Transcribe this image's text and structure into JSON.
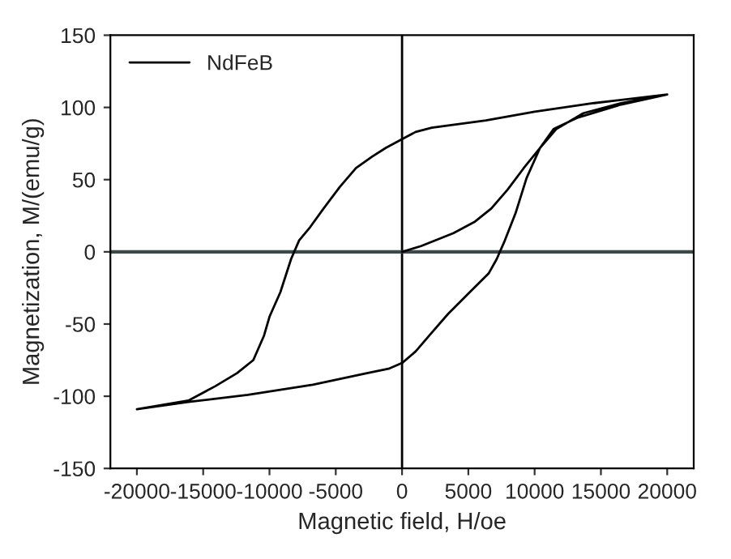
{
  "chart_data": {
    "type": "line",
    "xlabel": "Magnetic field, H/oe",
    "ylabel": "Magnetization, M/(emu/g)",
    "xlim": [
      -22000,
      22000
    ],
    "xticks": [
      -20000,
      -15000,
      -10000,
      -5000,
      0,
      5000,
      10000,
      15000,
      20000
    ],
    "ylim": [
      -150,
      150
    ],
    "yticks": [
      -150,
      -100,
      -50,
      0,
      50,
      100,
      150
    ],
    "series": [
      {
        "name": "NdFeB",
        "color": "#000000",
        "x": [
          0,
          1430,
          3880,
          5510,
          6730,
          7960,
          9180,
          10410,
          11430,
          13270,
          16530,
          20000,
          14490,
          10000,
          6330,
          2240,
          1020,
          0,
          -1220,
          -2240,
          -3470,
          -4690,
          -5920,
          -6940,
          -7760,
          -8370,
          -9180,
          -10000,
          -10410,
          -11220,
          -12450,
          -14080,
          -16120,
          -20000,
          -16120,
          -11630,
          -6730,
          -2650,
          -1020,
          0,
          1020,
          2240,
          3470,
          5100,
          6530,
          7140,
          7760,
          8570,
          9390,
          10410,
          11630,
          13670,
          16530,
          20000
        ],
        "values": [
          0,
          4,
          13,
          21,
          30,
          43,
          58,
          72,
          85,
          93,
          102,
          109,
          103,
          97,
          91,
          86,
          83,
          78,
          72,
          66,
          58,
          45,
          30,
          17,
          8,
          -5,
          -28,
          -45,
          -58,
          -75,
          -84,
          -93,
          -103,
          -109,
          -104,
          -99,
          -92,
          -84,
          -81,
          -77,
          -69,
          -56,
          -43,
          -28,
          -15,
          -5,
          8,
          27,
          51,
          72,
          85,
          96,
          103,
          109
        ]
      }
    ],
    "ref_lines": [
      {
        "axis": "x",
        "value": 0,
        "color": "#000000"
      },
      {
        "axis": "y",
        "value": 0,
        "color": "#3a4a4a"
      }
    ],
    "legend": "top left",
    "grid": false,
    "marker": "none",
    "line_style": "solid"
  }
}
